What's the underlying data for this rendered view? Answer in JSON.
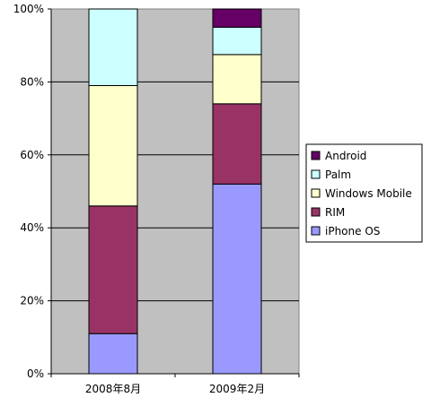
{
  "chart_data": {
    "type": "bar",
    "stacked": true,
    "percent_stacked": true,
    "categories": [
      "2008年8月",
      "2009年2月"
    ],
    "series": [
      {
        "name": "iPhone OS",
        "color": "#9999ff",
        "values": [
          11,
          52
        ]
      },
      {
        "name": "RIM",
        "color": "#993366",
        "values": [
          35,
          22
        ]
      },
      {
        "name": "Windows Mobile",
        "color": "#ffffcc",
        "values": [
          33,
          13.5
        ]
      },
      {
        "name": "Palm",
        "color": "#ccffff",
        "values": [
          21,
          7.5
        ]
      },
      {
        "name": "Android",
        "color": "#660066",
        "values": [
          0,
          5
        ]
      }
    ],
    "ylim": [
      0,
      100
    ],
    "y_ticks": [
      "0%",
      "20%",
      "40%",
      "60%",
      "80%",
      "100%"
    ],
    "grid": true,
    "legend_position": "right",
    "legend_order": [
      "Android",
      "Palm",
      "Windows Mobile",
      "RIM",
      "iPhone OS"
    ],
    "plot_background": "#c0c0c0",
    "title": "",
    "xlabel": "",
    "ylabel": ""
  }
}
